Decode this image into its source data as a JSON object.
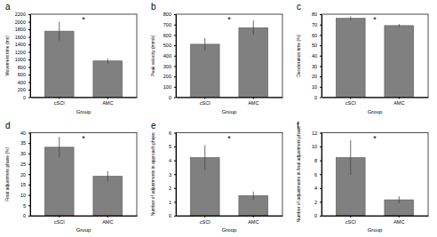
{
  "chart_data": [
    {
      "type": "bar",
      "title": "a",
      "annotation": "*",
      "x_label": "Group",
      "y_label": "Movement time (ms)",
      "categories": [
        "cSCI",
        "AMC"
      ],
      "values": [
        1750,
        960
      ],
      "errors": [
        250,
        60
      ],
      "color": "#808080",
      "ylim": [
        0,
        2200
      ],
      "yticks": [
        0,
        200,
        400,
        600,
        800,
        1000,
        1200,
        1400,
        1600,
        1800,
        2000,
        2200
      ]
    },
    {
      "type": "bar",
      "title": "b",
      "annotation": "*",
      "x_label": "Group",
      "y_label": "Peak velocity (mm/s)",
      "categories": [
        "cSCI",
        "AMC"
      ],
      "values": [
        510,
        670
      ],
      "errors": [
        60,
        70
      ],
      "color": "#808080",
      "ylim": [
        0,
        800
      ],
      "yticks": [
        0,
        100,
        200,
        300,
        400,
        500,
        600,
        700,
        800
      ]
    },
    {
      "type": "bar",
      "title": "c",
      "annotation": "*",
      "x_label": "Group",
      "y_label": "Deceleration time (%)",
      "categories": [
        "cSCI",
        "AMC"
      ],
      "values": [
        76,
        69
      ],
      "errors": [
        2,
        1.5
      ],
      "color": "#808080",
      "ylim": [
        0,
        80
      ],
      "yticks": [
        0,
        10,
        20,
        30,
        40,
        50,
        60,
        70,
        80
      ]
    },
    {
      "type": "bar",
      "title": "d",
      "annotation": "*",
      "x_label": "Group",
      "y_label": "Final adjustment phase (%)",
      "categories": [
        "cSCI",
        "AMC"
      ],
      "values": [
        33,
        19
      ],
      "errors": [
        5,
        2.5
      ],
      "color": "#808080",
      "ylim": [
        0,
        40
      ],
      "yticks": [
        0,
        5,
        10,
        15,
        20,
        25,
        30,
        35,
        40
      ]
    },
    {
      "type": "bar",
      "title": "e",
      "annotation": "*",
      "x_label": "Group",
      "y_label": "Number of adjustments in approach phase",
      "categories": [
        "cSCI",
        "AMC"
      ],
      "values": [
        4.2,
        1.45
      ],
      "errors": [
        0.9,
        0.3
      ],
      "color": "#808080",
      "ylim": [
        0,
        6
      ],
      "yticks": [
        0,
        1,
        2,
        3,
        4,
        5,
        6
      ]
    },
    {
      "type": "bar",
      "title": "f",
      "annotation": "*",
      "x_label": "Group",
      "y_label": "Number of adjustments in final adjustment phase",
      "categories": [
        "cSCI",
        "AMC"
      ],
      "values": [
        8.4,
        2.3
      ],
      "errors": [
        2.5,
        0.5
      ],
      "color": "#808080",
      "ylim": [
        0,
        12
      ],
      "yticks": [
        0,
        2,
        4,
        6,
        8,
        10,
        12
      ]
    }
  ]
}
